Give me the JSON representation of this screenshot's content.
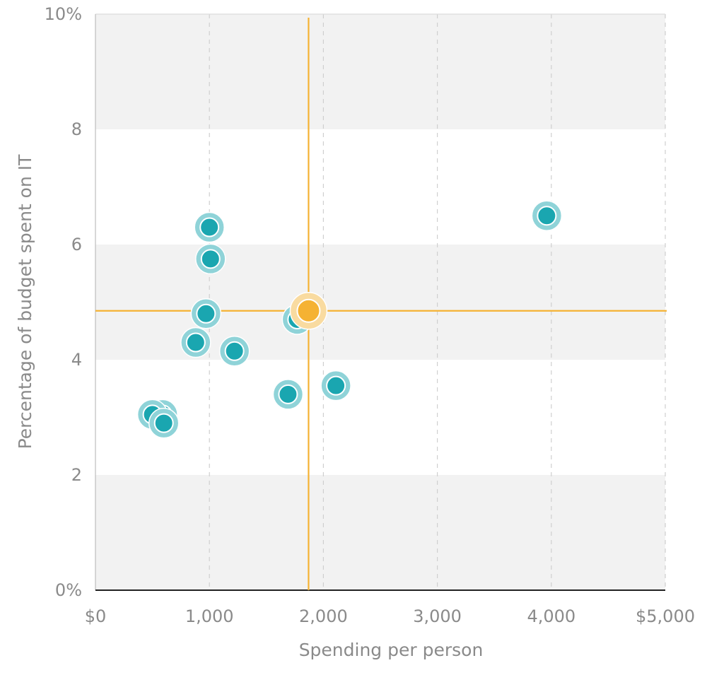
{
  "chart_data": {
    "type": "scatter",
    "title": "",
    "xlabel": "Spending per person",
    "ylabel": "Percentage of budget spent on IT",
    "xlim": [
      0,
      5000
    ],
    "ylim": [
      0,
      10
    ],
    "x_ticks": [
      {
        "value": 0,
        "label": "$0"
      },
      {
        "value": 1000,
        "label": "1,000"
      },
      {
        "value": 2000,
        "label": "2,000"
      },
      {
        "value": 3000,
        "label": "3,000"
      },
      {
        "value": 4000,
        "label": "4,000"
      },
      {
        "value": 5000,
        "label": "$5,000"
      }
    ],
    "y_ticks": [
      {
        "value": 0,
        "label": "0%"
      },
      {
        "value": 2,
        "label": "2"
      },
      {
        "value": 4,
        "label": "4"
      },
      {
        "value": 6,
        "label": "6"
      },
      {
        "value": 8,
        "label": "8"
      },
      {
        "value": 10,
        "label": "10%"
      }
    ],
    "grid": {
      "vertical": "dashed",
      "horizontal_bands": true
    },
    "series": [
      {
        "color": "#1aa6b0",
        "halo_color": "#8fd3d8",
        "points": [
          {
            "x": 1000,
            "y": 6.3
          },
          {
            "x": 1010,
            "y": 5.75
          },
          {
            "x": 970,
            "y": 4.8
          },
          {
            "x": 880,
            "y": 4.3
          },
          {
            "x": 1220,
            "y": 4.15
          },
          {
            "x": 1770,
            "y": 4.7
          },
          {
            "x": 1690,
            "y": 3.4
          },
          {
            "x": 2110,
            "y": 3.55
          },
          {
            "x": 3960,
            "y": 6.5
          },
          {
            "x": 590,
            "y": 3.05
          },
          {
            "x": 500,
            "y": 3.05
          },
          {
            "x": 600,
            "y": 2.9
          }
        ]
      },
      {
        "color": "#f5b233",
        "halo_color": "#f9dba0",
        "points": [
          {
            "x": 1870,
            "y": 4.85
          }
        ]
      }
    ],
    "reference_lines": {
      "color": "#f5b233",
      "x": 1870,
      "y": 4.85
    }
  }
}
